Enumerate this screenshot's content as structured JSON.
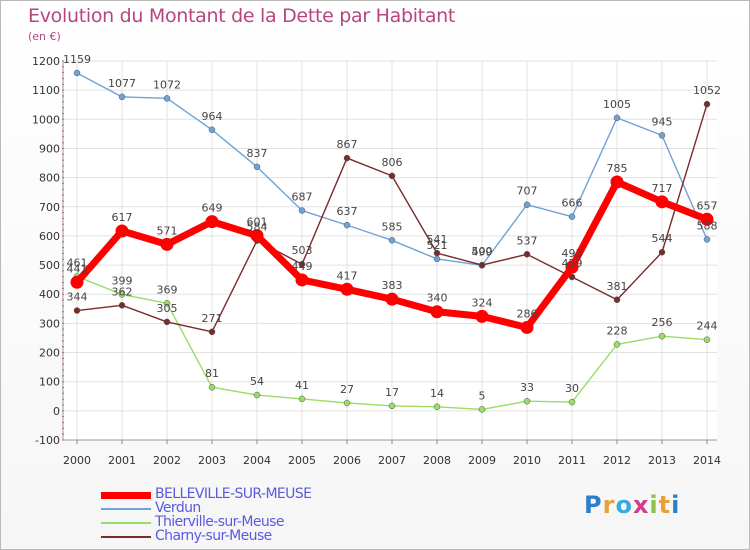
{
  "title": "Evolution du Montant de la Dette par Habitant",
  "subtitle": "(en €)",
  "brand": {
    "text": "Proxiti",
    "colors": [
      "#2c7fc9",
      "#e8a13a",
      "#3aa9dd",
      "#d43c8b",
      "#8bc34a",
      "#e8a13a",
      "#2c7fc9"
    ]
  },
  "chart_data": {
    "type": "line",
    "x": [
      "2000",
      "2001",
      "2002",
      "2003",
      "2004",
      "2005",
      "2006",
      "2007",
      "2008",
      "2009",
      "2010",
      "2011",
      "2012",
      "2013",
      "2014"
    ],
    "ylim": [
      -100,
      1200
    ],
    "yticks": [
      -100,
      0,
      100,
      200,
      300,
      400,
      500,
      600,
      700,
      800,
      900,
      1000,
      1100,
      1200
    ],
    "grid": true,
    "legend_position": "bottom-left",
    "series": [
      {
        "name": "BELLEVILLE-SUR-MEUSE",
        "color": "#ff0000",
        "values": [
          441,
          617,
          571,
          649,
          601,
          449,
          417,
          383,
          340,
          324,
          286,
          493,
          785,
          717,
          657
        ]
      },
      {
        "name": "Verdun",
        "color": "#6fa2d6",
        "values": [
          1159,
          1077,
          1072,
          964,
          837,
          687,
          637,
          585,
          521,
          499,
          707,
          666,
          1005,
          945,
          588
        ]
      },
      {
        "name": "Thierville-sur-Meuse",
        "color": "#99dd66",
        "values": [
          461,
          399,
          369,
          81,
          54,
          41,
          27,
          17,
          14,
          5,
          33,
          30,
          228,
          256,
          244
        ]
      },
      {
        "name": "Charny-sur-Meuse",
        "color": "#7a2b2b",
        "values": [
          344,
          362,
          305,
          271,
          584,
          503,
          867,
          806,
          541,
          500,
          537,
          459,
          381,
          544,
          1052
        ]
      }
    ]
  }
}
